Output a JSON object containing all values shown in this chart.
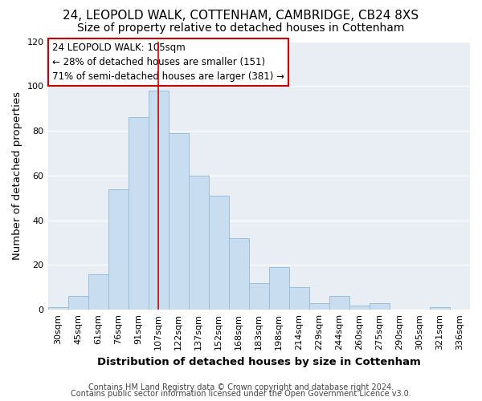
{
  "title": "24, LEOPOLD WALK, COTTENHAM, CAMBRIDGE, CB24 8XS",
  "subtitle": "Size of property relative to detached houses in Cottenham",
  "xlabel": "Distribution of detached houses by size in Cottenham",
  "ylabel": "Number of detached properties",
  "bar_labels": [
    "30sqm",
    "45sqm",
    "61sqm",
    "76sqm",
    "91sqm",
    "107sqm",
    "122sqm",
    "137sqm",
    "152sqm",
    "168sqm",
    "183sqm",
    "198sqm",
    "214sqm",
    "229sqm",
    "244sqm",
    "260sqm",
    "275sqm",
    "290sqm",
    "305sqm",
    "321sqm",
    "336sqm"
  ],
  "bar_values": [
    1,
    6,
    16,
    54,
    86,
    98,
    79,
    60,
    51,
    32,
    12,
    19,
    10,
    3,
    6,
    2,
    3,
    0,
    0,
    1,
    0
  ],
  "bar_color": "#c8ddf0",
  "bar_edge_color": "#9bbdd8",
  "highlight_bar_index": 5,
  "highlight_line_color": "#cc0000",
  "annotation_line1": "24 LEOPOLD WALK: 105sqm",
  "annotation_line2": "← 28% of detached houses are smaller (151)",
  "annotation_line3": "71% of semi-detached houses are larger (381) →",
  "annotation_box_color": "#ffffff",
  "annotation_box_edge_color": "#cc0000",
  "ylim": [
    0,
    120
  ],
  "yticks": [
    0,
    20,
    40,
    60,
    80,
    100,
    120
  ],
  "bg_color": "#e8eef4",
  "footer1": "Contains HM Land Registry data © Crown copyright and database right 2024.",
  "footer2": "Contains public sector information licensed under the Open Government Licence v3.0.",
  "title_fontsize": 11,
  "subtitle_fontsize": 10,
  "axis_label_fontsize": 9.5,
  "tick_fontsize": 8,
  "annotation_fontsize": 8.5,
  "footer_fontsize": 7
}
